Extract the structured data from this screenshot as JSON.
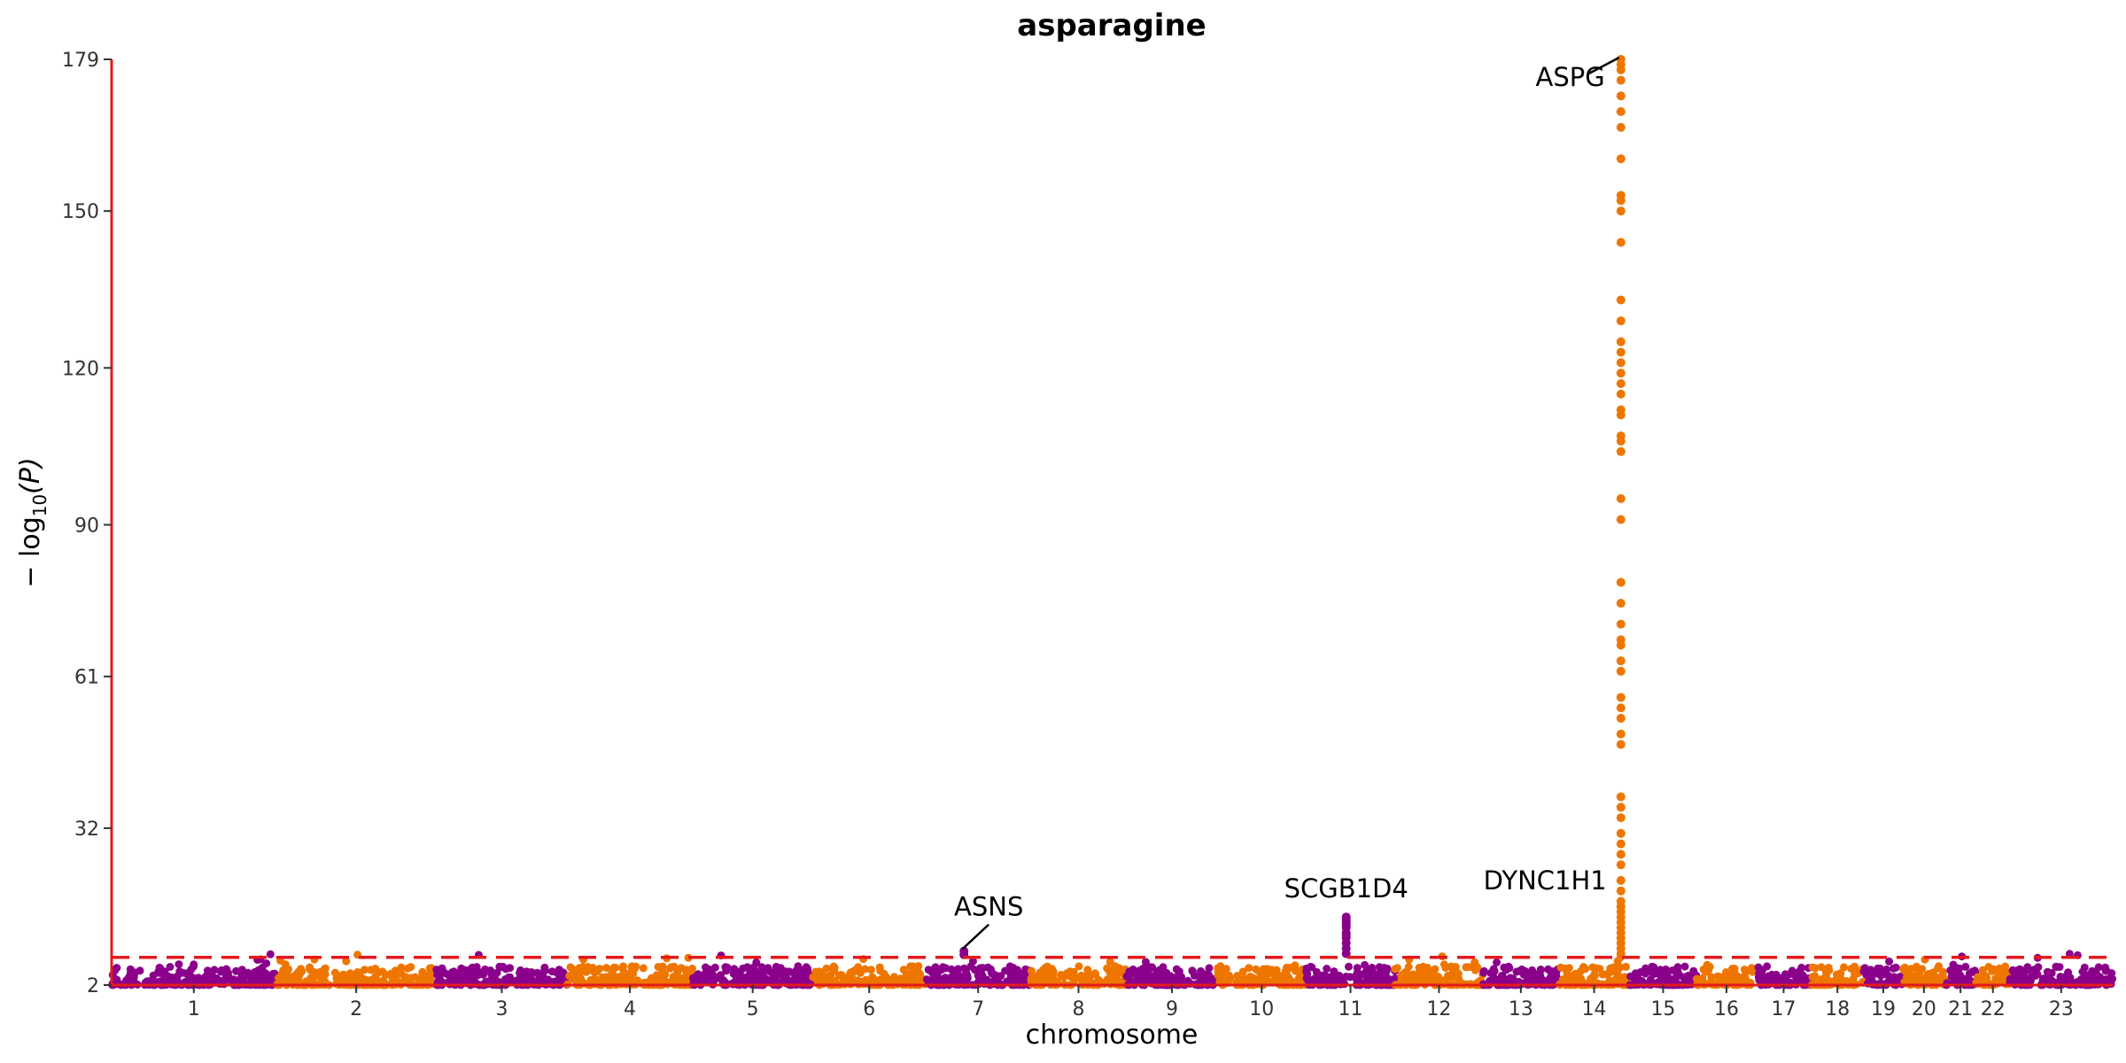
{
  "chart_data": {
    "type": "scatter",
    "title": "asparagine",
    "xlabel": "chromosome",
    "ylabel_main": "− log",
    "ylabel_sub": "10",
    "ylabel_end": "(P)",
    "yticks": [
      2,
      32,
      61,
      90,
      120,
      150,
      179
    ],
    "ylim": [
      2,
      179
    ],
    "significance_threshold": 7.3,
    "threshold_color": "#e41a1c",
    "axis_color": "#e41a1c",
    "colors": {
      "odd": "#8b008b",
      "even": "#ee7600"
    },
    "chromosomes": [
      {
        "label": "1",
        "start": 0,
        "end": 249
      },
      {
        "label": "2",
        "start": 249,
        "end": 492
      },
      {
        "label": "3",
        "start": 492,
        "end": 690
      },
      {
        "label": "4",
        "start": 690,
        "end": 880
      },
      {
        "label": "5",
        "start": 880,
        "end": 1062
      },
      {
        "label": "6",
        "start": 1062,
        "end": 1233
      },
      {
        "label": "7",
        "start": 1233,
        "end": 1392
      },
      {
        "label": "8",
        "start": 1392,
        "end": 1537
      },
      {
        "label": "9",
        "start": 1537,
        "end": 1675
      },
      {
        "label": "10",
        "start": 1675,
        "end": 1809
      },
      {
        "label": "11",
        "start": 1809,
        "end": 1944
      },
      {
        "label": "12",
        "start": 1944,
        "end": 2077
      },
      {
        "label": "13",
        "start": 2077,
        "end": 2192
      },
      {
        "label": "14",
        "start": 2192,
        "end": 2299
      },
      {
        "label": "15",
        "start": 2299,
        "end": 2401
      },
      {
        "label": "16",
        "start": 2401,
        "end": 2491
      },
      {
        "label": "17",
        "start": 2491,
        "end": 2574
      },
      {
        "label": "18",
        "start": 2574,
        "end": 2654
      },
      {
        "label": "19",
        "start": 2654,
        "end": 2713
      },
      {
        "label": "20",
        "start": 2713,
        "end": 2777
      },
      {
        "label": "21",
        "start": 2777,
        "end": 2824
      },
      {
        "label": "22",
        "start": 2824,
        "end": 2875
      },
      {
        "label": "23",
        "start": 2875,
        "end": 3031
      }
    ],
    "peaks": [
      {
        "chrom": "14",
        "pos": 2286,
        "values": [
          179,
          178,
          177,
          175,
          172,
          169,
          166,
          160,
          153,
          152,
          150,
          144,
          133,
          129,
          125,
          123,
          121,
          119,
          117,
          115,
          112,
          111,
          107,
          106,
          104,
          95,
          91,
          79,
          75,
          71,
          68,
          67,
          64,
          62,
          57,
          55,
          53,
          50,
          48,
          38,
          36,
          34,
          31,
          29,
          27,
          25,
          22,
          20,
          18,
          17,
          16,
          15,
          14,
          13,
          12,
          11,
          10,
          9,
          8
        ]
      },
      {
        "chrom": "11",
        "pos": 1870,
        "values": [
          15,
          14.5,
          14,
          13.5,
          13,
          12,
          11.5,
          11,
          10,
          9,
          8
        ]
      },
      {
        "chrom": "7",
        "pos": 1291,
        "values": [
          8.5,
          7.8
        ]
      }
    ],
    "annotations": [
      {
        "text": "ASPG",
        "chrom": "14",
        "pos": 2286,
        "y": 179
      },
      {
        "text": "DYNC1H1",
        "chrom": "14",
        "pos": 2286,
        "y": 22
      },
      {
        "text": "SCGB1D4",
        "chrom": "11",
        "pos": 1870,
        "y": 15
      },
      {
        "text": "ASNS",
        "chrom": "7",
        "pos": 1291,
        "y": 8.5
      }
    ]
  }
}
